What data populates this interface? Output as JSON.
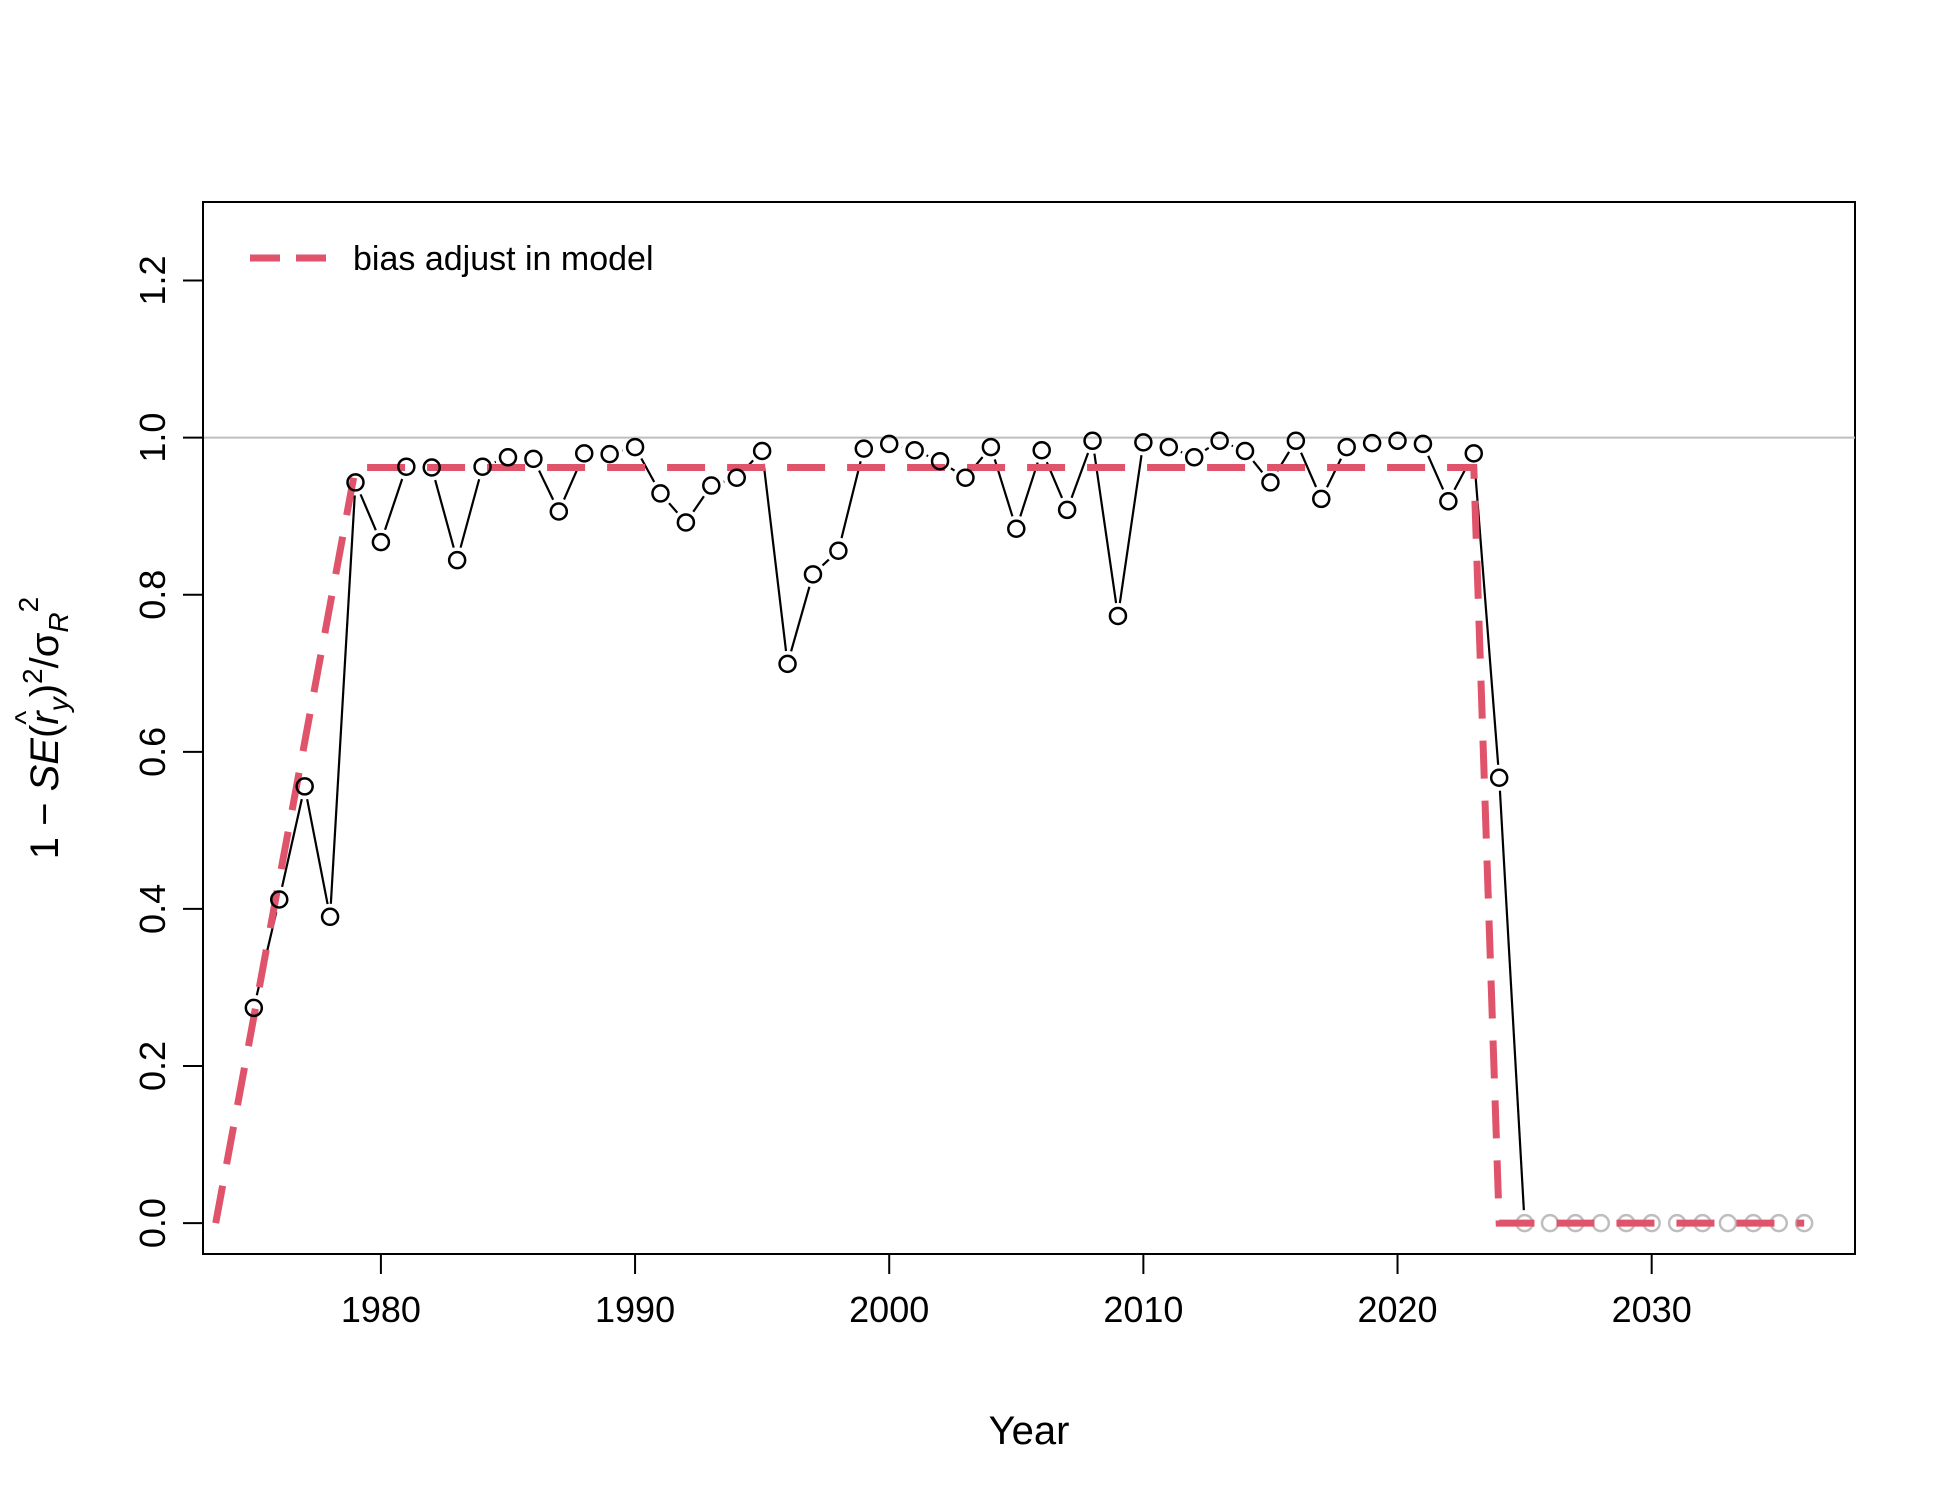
{
  "chart_data": {
    "type": "line",
    "title": "",
    "xlabel": "Year",
    "ylabel_parts": {
      "prefix": "1 − ",
      "se": "SE",
      "open": "(",
      "hat": "^",
      "r": "r",
      "y": "y",
      "close": ")",
      "exp": "2",
      "slash": "/",
      "sigma": "σ",
      "sub": "R",
      "exp2": "2"
    },
    "xlim": [
      1973,
      2038
    ],
    "ylim": [
      0,
      1.3
    ],
    "x_ticks": [
      1980,
      1990,
      2000,
      2010,
      2020,
      2030
    ],
    "y_ticks": [
      0.0,
      0.2,
      0.4,
      0.6,
      0.8,
      1.0,
      1.2
    ],
    "y_tick_labels": [
      "0.0",
      "0.2",
      "0.4",
      "0.6",
      "0.8",
      "1.0",
      "1.2"
    ],
    "reference_line": {
      "y": 1.0,
      "color": "#bebebe"
    },
    "legend": {
      "position": "top-left",
      "entries": [
        {
          "label": "bias adjust in model",
          "color": "#DF536B",
          "style": "dashed"
        }
      ]
    },
    "series": [
      {
        "kind": "points",
        "color": "#000000",
        "x": [
          1975,
          1976,
          1977,
          1978,
          1979,
          1980,
          1981,
          1982,
          1983,
          1984,
          1985,
          1986,
          1987,
          1988,
          1989,
          1990,
          1991,
          1992,
          1993,
          1994,
          1995,
          1996,
          1997,
          1998,
          1999,
          2000,
          2001,
          2002,
          2003,
          2004,
          2005,
          2006,
          2007,
          2008,
          2009,
          2010,
          2011,
          2012,
          2013,
          2014,
          2015,
          2016,
          2017,
          2018,
          2019,
          2020,
          2021,
          2022,
          2023,
          2024,
          2025
        ],
        "y": [
          0.274,
          0.412,
          0.556,
          0.39,
          0.943,
          0.867,
          0.963,
          0.962,
          0.844,
          0.963,
          0.975,
          0.973,
          0.906,
          0.98,
          0.979,
          0.988,
          0.929,
          0.892,
          0.939,
          0.949,
          0.983,
          0.712,
          0.826,
          0.856,
          0.986,
          0.992,
          0.984,
          0.97,
          0.949,
          0.988,
          0.884,
          0.984,
          0.908,
          0.996,
          0.773,
          0.994,
          0.988,
          0.975,
          0.996,
          0.983,
          0.943,
          0.996,
          0.922,
          0.988,
          0.993,
          0.996,
          0.992,
          0.919,
          0.98,
          0.567,
          0.0
        ]
      },
      {
        "kind": "points",
        "color": "#bebebe",
        "x": [
          2025,
          2026,
          2027,
          2028,
          2029,
          2030,
          2031,
          2032,
          2033,
          2034,
          2035,
          2036
        ],
        "y": [
          0,
          0,
          0,
          0,
          0,
          0,
          0,
          0,
          0,
          0,
          0,
          0
        ]
      },
      {
        "kind": "line",
        "name": "bias adjust in model",
        "color": "#DF536B",
        "style": "dashed",
        "x": [
          1973.5,
          1979,
          2023,
          2024,
          2036
        ],
        "y": [
          0,
          0.962,
          0.962,
          0,
          0
        ]
      }
    ]
  }
}
